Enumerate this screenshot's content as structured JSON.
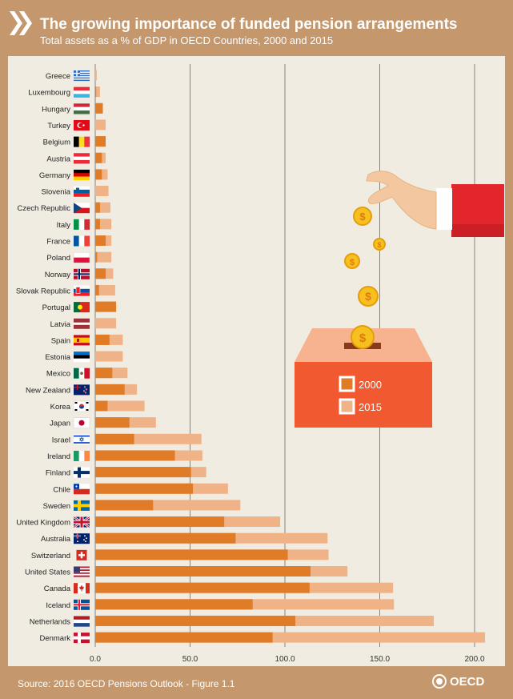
{
  "header": {
    "title": "The growing importance of funded pension arrangements",
    "subtitle": "Total assets as a % of GDP in OECD Countries, 2000 and 2015"
  },
  "footer": {
    "source": "Source: 2016 OECD Pensions Outlook - Figure 1.1",
    "logo_text": "OECD"
  },
  "colors": {
    "frame": "#c4976c",
    "panel": "#f0ece2",
    "series_2000": "#e07b28",
    "series_2015": "#f0b287",
    "ballot_box": "#f15a30",
    "sleeve": "#e3262c"
  },
  "chart_data": {
    "type": "bar",
    "orientation": "horizontal",
    "title": "The growing importance of funded pension arrangements",
    "subtitle": "Total assets as a % of GDP in OECD Countries, 2000 and 2015",
    "xlim": [
      0,
      200
    ],
    "xticks": [
      "0.0",
      "50.0",
      "100.0",
      "150.0",
      "200.0"
    ],
    "grid": true,
    "legend_placement": "right",
    "categories": [
      "Greece",
      "Luxembourg",
      "Hungary",
      "Turkey",
      "Belgium",
      "Austria",
      "Germany",
      "Slovenia",
      "Czech Republic",
      "Italy",
      "France",
      "Poland",
      "Norway",
      "Slovak Republic",
      "Portugal",
      "Latvia",
      "Spain",
      "Estonia",
      "Mexico",
      "New Zealand",
      "Korea",
      "Japan",
      "Israel",
      "Ireland",
      "Finland",
      "Chile",
      "Sweden",
      "United Kingdom",
      "Australia",
      "Switzerland",
      "United States",
      "Canada",
      "Iceland",
      "Netherlands",
      "Denmark"
    ],
    "series": [
      {
        "name": "2000",
        "values": [
          0.0,
          0.5,
          4.0,
          0.0,
          5.5,
          3.5,
          3.5,
          0.0,
          2.5,
          2.5,
          5.5,
          1.0,
          5.5,
          2.0,
          11.0,
          0.0,
          7.5,
          0.0,
          9.0,
          15.5,
          6.5,
          18.0,
          20.5,
          42.0,
          50.5,
          51.5,
          30.5,
          68.0,
          74.0,
          101.5,
          113.5,
          113.0,
          83.0,
          105.5,
          93.5
        ]
      },
      {
        "name": "2015",
        "values": [
          0.8,
          2.5,
          4.0,
          5.5,
          5.5,
          5.5,
          6.5,
          7.0,
          8.0,
          8.5,
          8.5,
          8.5,
          9.5,
          10.5,
          11.0,
          11.0,
          14.5,
          14.5,
          17.0,
          22.0,
          26.0,
          32.0,
          56.0,
          56.5,
          58.5,
          70.0,
          76.5,
          97.5,
          122.5,
          123.0,
          133.0,
          157.0,
          157.5,
          178.5,
          205.5
        ]
      }
    ],
    "flags": [
      "greece-flag-icon",
      "luxembourg-flag-icon",
      "hungary-flag-icon",
      "turkey-flag-icon",
      "belgium-flag-icon",
      "austria-flag-icon",
      "germany-flag-icon",
      "slovenia-flag-icon",
      "czech-republic-flag-icon",
      "italy-flag-icon",
      "france-flag-icon",
      "poland-flag-icon",
      "norway-flag-icon",
      "slovak-republic-flag-icon",
      "portugal-flag-icon",
      "latvia-flag-icon",
      "spain-flag-icon",
      "estonia-flag-icon",
      "mexico-flag-icon",
      "new-zealand-flag-icon",
      "korea-flag-icon",
      "japan-flag-icon",
      "israel-flag-icon",
      "ireland-flag-icon",
      "finland-flag-icon",
      "chile-flag-icon",
      "sweden-flag-icon",
      "united-kingdom-flag-icon",
      "australia-flag-icon",
      "switzerland-flag-icon",
      "united-states-flag-icon",
      "canada-flag-icon",
      "iceland-flag-icon",
      "netherlands-flag-icon",
      "denmark-flag-icon"
    ]
  },
  "illustration": {
    "icons": [
      "hand-icon",
      "coin-icon",
      "ballot-box-icon"
    ]
  }
}
